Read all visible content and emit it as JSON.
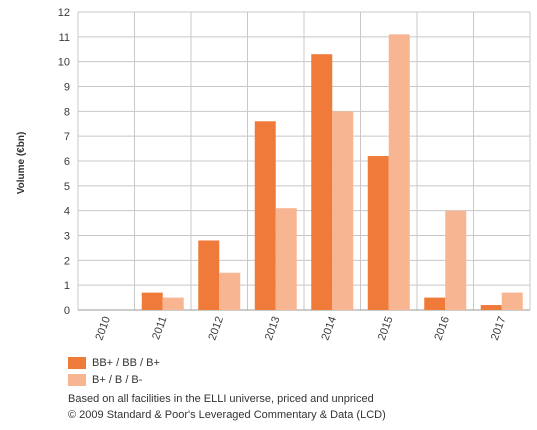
{
  "chart_data": {
    "type": "bar",
    "categories": [
      "2010",
      "2011",
      "2012",
      "2013",
      "2014",
      "2015",
      "2016",
      "2017"
    ],
    "series": [
      {
        "name": "BB+ / BB / B+",
        "color": "#f07a3a",
        "values": [
          0,
          0.7,
          2.8,
          7.6,
          10.3,
          6.2,
          0.5,
          0.2
        ]
      },
      {
        "name": "B+ / B / B-",
        "color": "#f7b592",
        "values": [
          0,
          0.5,
          1.5,
          4.1,
          8.0,
          11.1,
          4.0,
          0.7
        ]
      }
    ],
    "yticks": [
      "0",
      "1",
      "2",
      "3",
      "4",
      "5",
      "6",
      "7",
      "8",
      "9",
      "10",
      "11",
      "12"
    ],
    "ylim": [
      0,
      12
    ],
    "ylabel": "Volume (€bn)",
    "xlabel": "",
    "grid": true,
    "legend_position": "bottom-left"
  },
  "notes": {
    "line1": "Based on all facilities in the ELLI universe, priced and unpriced",
    "line2": "© 2009 Standard & Poor's Leveraged Commentary & Data (LCD)"
  }
}
